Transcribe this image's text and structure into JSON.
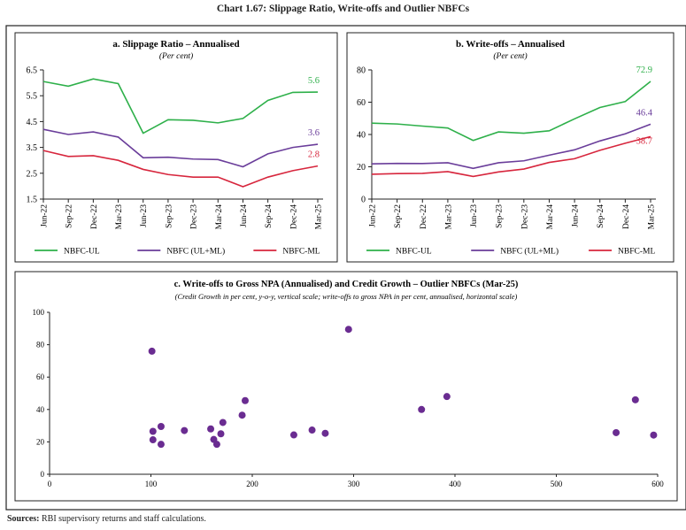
{
  "figure_title": "Chart 1.67: Slippage Ratio, Write-offs and Outlier NBFCs",
  "sources": {
    "label": "Sources:",
    "text": " RBI supervisory returns and staff calculations."
  },
  "colors": {
    "NBFC-UL": "#2eb04a",
    "NBFC (UL+ML)": "#6a3d9a",
    "NBFC-ML": "#d7263d",
    "scatter": "#6a2c91"
  },
  "chart_data": [
    {
      "type": "line",
      "title": "a. Slippage Ratio – Annualised",
      "subtitle": "(Per cent)",
      "categories": [
        "Jun-22",
        "Sep-22",
        "Dec-22",
        "Mar-23",
        "Jun-23",
        "Sep-23",
        "Dec-23",
        "Mar-24",
        "Jun-24",
        "Sep-24",
        "Dec-24",
        "Mar-25"
      ],
      "ylim": [
        1.5,
        6.5
      ],
      "yticks": [
        "1.5",
        "2.5",
        "3.5",
        "4.5",
        "5.5",
        "6.5"
      ],
      "grid": false,
      "legend_placement": "bottom",
      "series": [
        {
          "name": "NBFC-UL",
          "values": [
            6.05,
            5.87,
            6.15,
            5.97,
            4.05,
            4.57,
            4.55,
            4.45,
            4.62,
            5.32,
            5.63,
            5.64
          ],
          "end_label": "5.6"
        },
        {
          "name": "NBFC (UL+ML)",
          "values": [
            4.2,
            4.0,
            4.1,
            3.9,
            3.1,
            3.12,
            3.05,
            3.03,
            2.75,
            3.25,
            3.5,
            3.62
          ],
          "end_label": "3.6"
        },
        {
          "name": "NBFC-ML",
          "values": [
            3.38,
            3.15,
            3.18,
            3.0,
            2.65,
            2.45,
            2.35,
            2.35,
            1.98,
            2.35,
            2.6,
            2.78
          ],
          "end_label": "2.8"
        }
      ]
    },
    {
      "type": "line",
      "title": "b. Write-offs – Annualised",
      "subtitle": "(Per cent)",
      "categories": [
        "Jun-22",
        "Sep-22",
        "Dec-22",
        "Mar-23",
        "Jun-23",
        "Sep-23",
        "Dec-23",
        "Mar-24",
        "Jun-24",
        "Sep-24",
        "Dec-24",
        "Mar-25"
      ],
      "ylim": [
        0,
        80
      ],
      "yticks": [
        "0",
        "20",
        "40",
        "60",
        "80"
      ],
      "grid": false,
      "legend_placement": "bottom",
      "series": [
        {
          "name": "NBFC-UL",
          "values": [
            47,
            46.5,
            45.2,
            44,
            36.3,
            41.6,
            40.8,
            42.3,
            49.7,
            56.7,
            60.4,
            72.9
          ],
          "end_label": "72.9"
        },
        {
          "name": "NBFC (UL+ML)",
          "values": [
            21.8,
            22.1,
            22,
            22.5,
            19,
            22.5,
            23.7,
            27.2,
            30.5,
            36,
            40.4,
            46.4
          ],
          "end_label": "46.4"
        },
        {
          "name": "NBFC-ML",
          "values": [
            15.4,
            15.8,
            15.9,
            17,
            14,
            16.8,
            18.6,
            22.7,
            25,
            30.2,
            34.6,
            38.7
          ],
          "end_label": "38.7"
        }
      ]
    },
    {
      "type": "scatter",
      "title": "c. Write-offs to Gross NPA (Annualised) and Credit Growth – Outlier NBFCs (Mar-25)",
      "subtitle": "(Credit Growth in per cent, y-o-y, vertical scale; write-offs to gross NPA in per cent, annualised, horizontal scale)",
      "xlim": [
        0,
        600
      ],
      "ylim": [
        0,
        100
      ],
      "xticks": [
        "0",
        "100",
        "200",
        "300",
        "400",
        "500",
        "600"
      ],
      "yticks": [
        "0",
        "20",
        "40",
        "60",
        "80",
        "100"
      ],
      "grid": false,
      "points": [
        [
          101,
          76
        ],
        [
          102,
          26.5
        ],
        [
          102,
          21.3
        ],
        [
          110,
          29.5
        ],
        [
          110,
          18.5
        ],
        [
          133,
          27
        ],
        [
          159,
          28
        ],
        [
          162,
          21.5
        ],
        [
          165,
          18.5
        ],
        [
          169,
          25
        ],
        [
          171,
          32
        ],
        [
          190,
          36.5
        ],
        [
          193,
          45.5
        ],
        [
          241,
          24.3
        ],
        [
          259,
          27.3
        ],
        [
          272,
          25.3
        ],
        [
          295,
          89.5
        ],
        [
          367,
          40
        ],
        [
          392,
          48
        ],
        [
          559,
          25.7
        ],
        [
          578,
          46
        ],
        [
          596,
          24.2
        ]
      ]
    }
  ]
}
